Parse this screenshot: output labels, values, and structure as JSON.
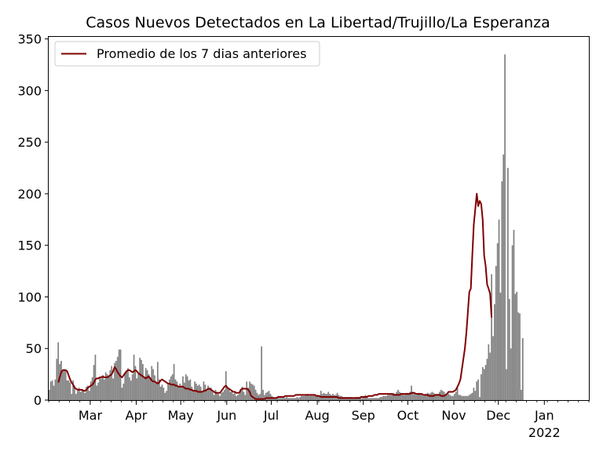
{
  "chart_data": {
    "type": "bar",
    "title": "Casos Nuevos Detectados en La Libertad/Trujillo/La Esperanza",
    "xlabel": "",
    "ylabel": "",
    "ylim": [
      0,
      352
    ],
    "x_range": [
      "2021-02-01",
      "2022-01-31"
    ],
    "y_ticks": [
      0,
      50,
      100,
      150,
      200,
      250,
      300,
      350
    ],
    "x_ticks": [
      {
        "date": "2021-03-01",
        "label": "Mar"
      },
      {
        "date": "2021-04-01",
        "label": "Apr"
      },
      {
        "date": "2021-05-01",
        "label": "May"
      },
      {
        "date": "2021-06-01",
        "label": "Jun"
      },
      {
        "date": "2021-07-01",
        "label": "Jul"
      },
      {
        "date": "2021-08-01",
        "label": "Aug"
      },
      {
        "date": "2021-09-01",
        "label": "Sep"
      },
      {
        "date": "2021-10-01",
        "label": "Oct"
      },
      {
        "date": "2021-11-01",
        "label": "Nov"
      },
      {
        "date": "2021-12-01",
        "label": "Dec"
      },
      {
        "date": "2022-01-01",
        "label": "Jan",
        "sublabel": "2022"
      }
    ],
    "legend": {
      "position": "top-left",
      "label": "Promedio de los 7 dias anteriores"
    },
    "colors": {
      "bars": "#808080",
      "line": "#800000"
    },
    "grid": false,
    "bars": {
      "start_date": "2021-02-01",
      "values": [
        10,
        18,
        19,
        14,
        20,
        40,
        56,
        35,
        38,
        28,
        30,
        29,
        19,
        19,
        17,
        6,
        19,
        14,
        6,
        9,
        12,
        8,
        9,
        10,
        7,
        13,
        14,
        9,
        18,
        22,
        34,
        44,
        14,
        17,
        22,
        21,
        24,
        20,
        27,
        25,
        23,
        29,
        33,
        21,
        36,
        38,
        42,
        49,
        49,
        12,
        16,
        27,
        28,
        31,
        22,
        19,
        25,
        44,
        33,
        21,
        26,
        41,
        39,
        35,
        22,
        31,
        29,
        25,
        22,
        33,
        30,
        24,
        17,
        37,
        20,
        13,
        15,
        12,
        7,
        9,
        16,
        20,
        23,
        25,
        35,
        20,
        18,
        13,
        16,
        14,
        23,
        17,
        25,
        23,
        19,
        20,
        13,
        9,
        18,
        16,
        14,
        15,
        13,
        8,
        18,
        15,
        10,
        14,
        12,
        12,
        8,
        5,
        10,
        8,
        6,
        4,
        7,
        8,
        10,
        28,
        12,
        10,
        8,
        9,
        6,
        7,
        4,
        5,
        6,
        10,
        13,
        8,
        5,
        18,
        12,
        18,
        16,
        15,
        14,
        10,
        7,
        5,
        6,
        52,
        10,
        5,
        7,
        8,
        9,
        6,
        4,
        3,
        2,
        2,
        2,
        2,
        2,
        2,
        2,
        2,
        3,
        2,
        2,
        2,
        2,
        2,
        2,
        3,
        2,
        3,
        4,
        4,
        4,
        5,
        6,
        4,
        5,
        4,
        5,
        4,
        5,
        5,
        4,
        9,
        6,
        7,
        6,
        6,
        8,
        6,
        5,
        6,
        5,
        5,
        7,
        5,
        4,
        4,
        3,
        3,
        3,
        3,
        3,
        3,
        3,
        2,
        3,
        3,
        3,
        3,
        2,
        2,
        3,
        5,
        4,
        2,
        2,
        2,
        2,
        2,
        2,
        2,
        2,
        3,
        3,
        4,
        4,
        4,
        5,
        5,
        6,
        5,
        7,
        6,
        8,
        10,
        8,
        7,
        6,
        5,
        6,
        7,
        6,
        8,
        14,
        8,
        6,
        5,
        6,
        7,
        6,
        5,
        4,
        5,
        6,
        7,
        6,
        7,
        8,
        7,
        6,
        5,
        6,
        8,
        10,
        9,
        8,
        6,
        5,
        6,
        5,
        4,
        4,
        6,
        8,
        12,
        5,
        5,
        4,
        4,
        4,
        4,
        4,
        5,
        6,
        7,
        12,
        9,
        18,
        20,
        3,
        25,
        32,
        30,
        34,
        40,
        54,
        46,
        122,
        62,
        93,
        130,
        152,
        175,
        104,
        212,
        238,
        335,
        30,
        225,
        98,
        50,
        150,
        165,
        103,
        105,
        85,
        84,
        10,
        60
      ]
    },
    "average": {
      "start_date": "2021-02-07",
      "values": [
        17,
        22,
        27,
        29,
        29,
        29,
        28,
        24,
        20,
        17,
        15,
        12,
        11,
        10,
        10,
        10,
        10,
        9,
        9,
        10,
        12,
        13,
        14,
        15,
        17,
        20,
        21,
        21,
        22,
        22,
        23,
        22,
        22,
        22,
        23,
        24,
        25,
        28,
        32,
        30,
        27,
        25,
        23,
        22,
        24,
        26,
        28,
        29,
        29,
        28,
        27,
        28,
        29,
        28,
        26,
        25,
        24,
        23,
        22,
        21,
        22,
        23,
        21,
        19,
        18,
        18,
        17,
        16,
        17,
        19,
        20,
        19,
        18,
        17,
        16,
        16,
        15,
        15,
        15,
        14,
        14,
        13,
        13,
        13,
        13,
        12,
        11,
        11,
        11,
        10,
        10,
        9,
        9,
        9,
        8,
        8,
        8,
        8,
        9,
        9,
        10,
        11,
        11,
        10,
        9,
        8,
        7,
        7,
        7,
        7,
        9,
        11,
        13,
        14,
        12,
        11,
        10,
        9,
        8,
        8,
        7,
        7,
        7,
        10,
        11,
        11,
        11,
        11,
        10,
        8,
        4,
        3,
        2,
        1,
        1,
        1,
        1,
        1,
        1,
        1,
        2,
        2,
        2,
        2,
        2,
        2,
        2,
        2,
        3,
        3,
        3,
        3,
        3,
        4,
        4,
        4,
        4,
        4,
        4,
        4,
        5,
        5,
        5,
        5,
        5,
        5,
        5,
        5,
        5,
        5,
        5,
        5,
        5,
        5,
        4,
        4,
        4,
        3,
        3,
        3,
        3,
        3,
        3,
        3,
        3,
        3,
        3,
        3,
        3,
        2,
        2,
        2,
        2,
        2,
        2,
        2,
        2,
        2,
        2,
        2,
        2,
        2,
        2,
        2,
        3,
        3,
        3,
        3,
        3,
        4,
        4,
        4,
        4,
        5,
        5,
        5,
        6,
        6,
        6,
        6,
        6,
        6,
        6,
        6,
        6,
        6,
        5,
        5,
        5,
        5,
        5,
        6,
        6,
        6,
        6,
        6,
        6,
        6,
        7,
        7,
        7,
        6,
        6,
        6,
        6,
        6,
        5,
        5,
        5,
        5,
        4,
        4,
        4,
        4,
        5,
        5,
        5,
        5,
        4,
        4,
        4,
        5,
        6,
        8,
        8,
        8,
        8,
        9,
        10,
        13,
        16,
        20,
        30,
        40,
        50,
        65,
        85,
        105,
        108,
        140,
        170,
        185,
        200,
        188,
        193,
        190,
        175,
        140,
        130,
        112,
        108,
        103,
        80
      ]
    }
  }
}
